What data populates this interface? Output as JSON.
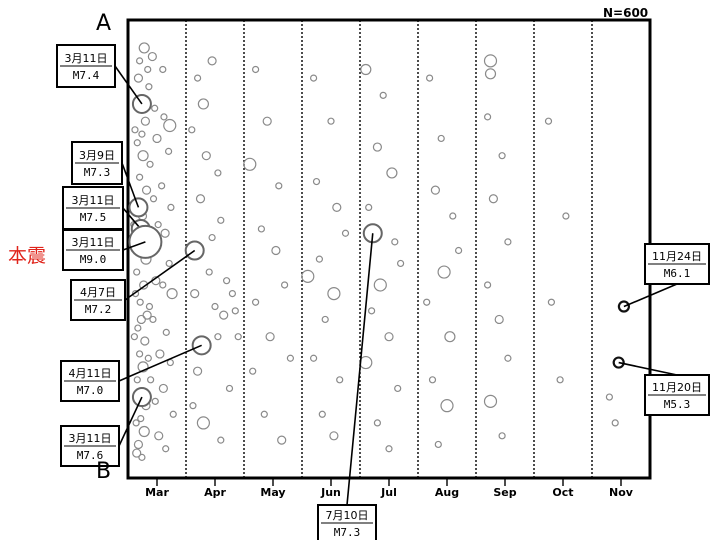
{
  "chart_data": {
    "type": "scatter",
    "count_label": "N=600",
    "end_labels": {
      "top": "A",
      "bottom": "B"
    },
    "categories": [
      "Mar",
      "Apr",
      "May",
      "Jun",
      "Jul",
      "Aug",
      "Sep",
      "Oct",
      "Nov"
    ],
    "xlim": [
      0,
      9
    ],
    "ylim": [
      0,
      1
    ],
    "grid": true,
    "dot_color": "#8a8a8a",
    "highlight_color": "#111111",
    "main_label": {
      "text": "本震",
      "color": "#e0241b"
    },
    "callouts": [
      {
        "date": "3月11日",
        "mag": "M7.4",
        "x": 0.24,
        "y": 0.16
      },
      {
        "date": "3月9日",
        "mag": "M7.3",
        "x": 0.18,
        "y": 0.4
      },
      {
        "date": "3月11日",
        "mag": "M7.5",
        "x": 0.22,
        "y": 0.45
      },
      {
        "date": "3月11日",
        "mag": "M9.0",
        "x": 0.3,
        "y": 0.48
      },
      {
        "date": "4月7日",
        "mag": "M7.2",
        "x": 1.15,
        "y": 0.5
      },
      {
        "date": "4月11日",
        "mag": "M7.0",
        "x": 1.27,
        "y": 0.72
      },
      {
        "date": "3月11日",
        "mag": "M7.6",
        "x": 0.24,
        "y": 0.84
      },
      {
        "date": "7月10日",
        "mag": "M7.3",
        "x": 4.22,
        "y": 0.46
      },
      {
        "date": "11月24日",
        "mag": "M6.1",
        "x": 8.55,
        "y": 0.63
      },
      {
        "date": "11月20日",
        "mag": "M5.3",
        "x": 8.46,
        "y": 0.76
      }
    ],
    "events": [
      [
        0.28,
        0.03,
        5
      ],
      [
        0.18,
        0.1,
        4
      ],
      [
        0.22,
        0.15,
        3
      ],
      [
        0.3,
        0.2,
        4
      ],
      [
        0.16,
        0.25,
        3
      ],
      [
        0.26,
        0.28,
        5
      ],
      [
        0.2,
        0.33,
        3
      ],
      [
        0.32,
        0.36,
        4
      ],
      [
        0.14,
        0.39,
        3
      ],
      [
        0.25,
        0.42,
        4
      ],
      [
        0.19,
        0.47,
        3
      ],
      [
        0.31,
        0.52,
        5
      ],
      [
        0.15,
        0.55,
        3
      ],
      [
        0.27,
        0.58,
        4
      ],
      [
        0.21,
        0.62,
        3
      ],
      [
        0.33,
        0.65,
        4
      ],
      [
        0.17,
        0.68,
        3
      ],
      [
        0.29,
        0.71,
        4
      ],
      [
        0.2,
        0.74,
        3
      ],
      [
        0.26,
        0.77,
        5
      ],
      [
        0.16,
        0.8,
        3
      ],
      [
        0.31,
        0.86,
        4
      ],
      [
        0.22,
        0.89,
        3
      ],
      [
        0.28,
        0.92,
        5
      ],
      [
        0.18,
        0.95,
        4
      ],
      [
        0.24,
        0.98,
        3
      ],
      [
        0.36,
        0.12,
        3
      ],
      [
        0.12,
        0.22,
        3
      ],
      [
        0.38,
        0.3,
        3
      ],
      [
        0.1,
        0.44,
        3
      ],
      [
        0.4,
        0.49,
        3
      ],
      [
        0.13,
        0.6,
        3
      ],
      [
        0.37,
        0.63,
        3
      ],
      [
        0.11,
        0.7,
        3
      ],
      [
        0.39,
        0.8,
        3
      ],
      [
        0.14,
        0.9,
        3
      ],
      [
        0.42,
        0.05,
        4
      ],
      [
        0.46,
        0.17,
        3
      ],
      [
        0.5,
        0.24,
        4
      ],
      [
        0.44,
        0.38,
        3
      ],
      [
        0.52,
        0.44,
        3
      ],
      [
        0.48,
        0.57,
        4
      ],
      [
        0.43,
        0.66,
        3
      ],
      [
        0.55,
        0.74,
        4
      ],
      [
        0.47,
        0.85,
        3
      ],
      [
        0.53,
        0.93,
        4
      ],
      [
        0.6,
        0.08,
        3
      ],
      [
        0.62,
        0.19,
        3
      ],
      [
        0.58,
        0.35,
        3
      ],
      [
        0.64,
        0.46,
        4
      ],
      [
        0.6,
        0.58,
        3
      ],
      [
        0.66,
        0.69,
        3
      ],
      [
        0.61,
        0.82,
        4
      ],
      [
        0.65,
        0.96,
        3
      ],
      [
        0.72,
        0.21,
        6
      ],
      [
        0.7,
        0.27,
        3
      ],
      [
        0.74,
        0.4,
        3
      ],
      [
        0.71,
        0.53,
        3
      ],
      [
        0.76,
        0.6,
        5
      ],
      [
        0.73,
        0.76,
        3
      ],
      [
        0.78,
        0.88,
        3
      ],
      [
        0.2,
        0.06,
        3
      ],
      [
        0.34,
        0.08,
        3
      ],
      [
        0.24,
        0.23,
        3
      ],
      [
        0.34,
        0.45,
        3
      ],
      [
        0.23,
        0.66,
        4
      ],
      [
        0.35,
        0.75,
        3
      ],
      [
        0.21,
        0.83,
        3
      ],
      [
        0.15,
        0.97,
        4
      ],
      [
        1.45,
        0.06,
        4
      ],
      [
        1.2,
        0.1,
        3
      ],
      [
        1.3,
        0.16,
        5
      ],
      [
        1.1,
        0.22,
        3
      ],
      [
        1.35,
        0.28,
        4
      ],
      [
        1.55,
        0.32,
        3
      ],
      [
        1.25,
        0.38,
        4
      ],
      [
        1.6,
        0.43,
        3
      ],
      [
        1.4,
        0.55,
        3
      ],
      [
        1.15,
        0.6,
        4
      ],
      [
        1.5,
        0.63,
        3
      ],
      [
        1.7,
        0.57,
        3
      ],
      [
        1.8,
        0.6,
        3
      ],
      [
        1.65,
        0.65,
        4
      ],
      [
        1.85,
        0.64,
        3
      ],
      [
        1.55,
        0.7,
        3
      ],
      [
        1.2,
        0.78,
        4
      ],
      [
        1.75,
        0.82,
        3
      ],
      [
        1.3,
        0.9,
        6
      ],
      [
        1.6,
        0.94,
        3
      ],
      [
        1.9,
        0.7,
        3
      ],
      [
        1.12,
        0.86,
        3
      ],
      [
        1.45,
        0.47,
        3
      ],
      [
        2.2,
        0.08,
        3
      ],
      [
        2.4,
        0.2,
        4
      ],
      [
        2.1,
        0.3,
        6
      ],
      [
        2.6,
        0.35,
        3
      ],
      [
        2.3,
        0.45,
        3
      ],
      [
        2.55,
        0.5,
        4
      ],
      [
        2.2,
        0.62,
        3
      ],
      [
        2.7,
        0.58,
        3
      ],
      [
        2.45,
        0.7,
        4
      ],
      [
        2.15,
        0.78,
        3
      ],
      [
        2.8,
        0.75,
        3
      ],
      [
        2.35,
        0.88,
        3
      ],
      [
        2.65,
        0.94,
        4
      ],
      [
        3.2,
        0.1,
        3
      ],
      [
        3.5,
        0.2,
        3
      ],
      [
        3.25,
        0.34,
        3
      ],
      [
        3.6,
        0.4,
        4
      ],
      [
        3.3,
        0.52,
        3
      ],
      [
        3.1,
        0.56,
        6
      ],
      [
        3.55,
        0.6,
        6
      ],
      [
        3.4,
        0.66,
        3
      ],
      [
        3.2,
        0.75,
        3
      ],
      [
        3.65,
        0.8,
        3
      ],
      [
        3.35,
        0.88,
        3
      ],
      [
        3.55,
        0.93,
        4
      ],
      [
        3.75,
        0.46,
        3
      ],
      [
        4.1,
        0.08,
        5
      ],
      [
        4.4,
        0.14,
        3
      ],
      [
        4.3,
        0.26,
        4
      ],
      [
        4.55,
        0.32,
        5
      ],
      [
        4.15,
        0.4,
        3
      ],
      [
        4.6,
        0.48,
        3
      ],
      [
        4.35,
        0.58,
        6
      ],
      [
        4.2,
        0.64,
        3
      ],
      [
        4.5,
        0.7,
        4
      ],
      [
        4.1,
        0.76,
        6
      ],
      [
        4.65,
        0.82,
        3
      ],
      [
        4.3,
        0.9,
        3
      ],
      [
        4.5,
        0.96,
        3
      ],
      [
        4.7,
        0.53,
        3
      ],
      [
        5.2,
        0.1,
        3
      ],
      [
        5.4,
        0.24,
        3
      ],
      [
        5.3,
        0.36,
        4
      ],
      [
        5.6,
        0.42,
        3
      ],
      [
        5.45,
        0.55,
        6
      ],
      [
        5.15,
        0.62,
        3
      ],
      [
        5.55,
        0.7,
        5
      ],
      [
        5.25,
        0.8,
        3
      ],
      [
        5.5,
        0.86,
        6
      ],
      [
        5.35,
        0.95,
        3
      ],
      [
        5.7,
        0.5,
        3
      ],
      [
        6.25,
        0.06,
        6
      ],
      [
        6.25,
        0.09,
        5
      ],
      [
        6.2,
        0.19,
        3
      ],
      [
        6.45,
        0.28,
        3
      ],
      [
        6.3,
        0.38,
        4
      ],
      [
        6.55,
        0.48,
        3
      ],
      [
        6.2,
        0.58,
        3
      ],
      [
        6.4,
        0.66,
        4
      ],
      [
        6.55,
        0.75,
        3
      ],
      [
        6.25,
        0.85,
        6
      ],
      [
        6.45,
        0.93,
        3
      ],
      [
        7.25,
        0.2,
        3
      ],
      [
        7.55,
        0.42,
        3
      ],
      [
        7.3,
        0.62,
        3
      ],
      [
        7.45,
        0.8,
        3
      ],
      [
        8.3,
        0.84,
        3
      ],
      [
        8.4,
        0.9,
        3
      ]
    ]
  }
}
